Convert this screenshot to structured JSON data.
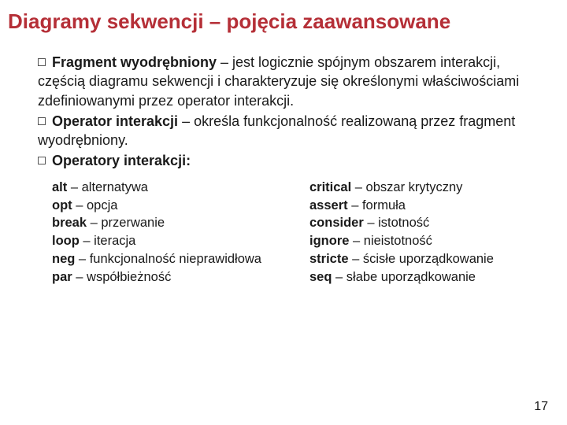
{
  "colors": {
    "title": "#b52f37",
    "body": "#1a1a1a",
    "bg": "#ffffff"
  },
  "title": "Diagramy sekwencji – pojęcia zaawansowane",
  "paragraphs": [
    {
      "bold": "Fragment wyodrębniony",
      "rest": " – jest logicznie spójnym obszarem interakcji, częścią diagramu sekwencji i charakteryzuje się określonymi właściwościami zdefiniowanymi przez operator interakcji."
    },
    {
      "bold": "Operator interakcji",
      "rest": " – określa funkcjonalność realizowaną przez fragment wyodrębniony."
    },
    {
      "bold": "Operatory interakcji:",
      "rest": ""
    }
  ],
  "operators_left": [
    {
      "name": "alt",
      "desc": " – alternatywa"
    },
    {
      "name": "opt",
      "desc": " – opcja"
    },
    {
      "name": "break",
      "desc": " – przerwanie"
    },
    {
      "name": "loop",
      "desc": " – iteracja"
    },
    {
      "name": "neg",
      "desc": " – funkcjonalność nieprawidłowa"
    },
    {
      "name": "par",
      "desc": " – współbieżność"
    }
  ],
  "operators_right": [
    {
      "name": "critical",
      "desc": " – obszar krytyczny"
    },
    {
      "name": "assert",
      "desc": " – formuła"
    },
    {
      "name": "consider",
      "desc": " – istotność"
    },
    {
      "name": "ignore",
      "desc": " – nieistotność"
    },
    {
      "name": "stricte",
      "desc": " – ścisłe uporządkowanie"
    },
    {
      "name": "seq",
      "desc": " – słabe uporządkowanie"
    }
  ],
  "page_number": "17"
}
